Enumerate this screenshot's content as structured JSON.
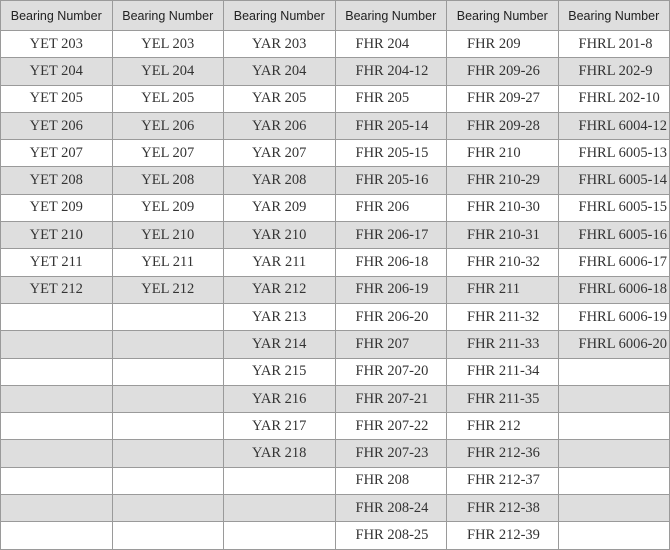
{
  "table": {
    "headers": [
      "Bearing Number",
      "Bearing Number",
      "Bearing Number",
      "Bearing Number",
      "Bearing Number",
      "Bearing Number"
    ],
    "columns": [
      [
        "YET 203",
        "YET 204",
        "YET 205",
        "YET 206",
        "YET 207",
        "YET 208",
        "YET 209",
        "YET 210",
        "YET 211",
        "YET 212"
      ],
      [
        "YEL 203",
        "YEL 204",
        "YEL 205",
        "YEL 206",
        "YEL 207",
        "YEL 208",
        "YEL 209",
        "YEL 210",
        "YEL 211",
        "YEL 212"
      ],
      [
        "YAR 203",
        "YAR 204",
        "YAR 205",
        "YAR 206",
        "YAR 207",
        "YAR 208",
        "YAR 209",
        "YAR 210",
        "YAR 211",
        "YAR 212",
        "YAR 213",
        "YAR 214",
        "YAR 215",
        "YAR 216",
        "YAR 217",
        "YAR 218"
      ],
      [
        "FHR 204",
        "FHR 204-12",
        "FHR 205",
        "FHR 205-14",
        "FHR 205-15",
        "FHR 205-16",
        "FHR 206",
        "FHR 206-17",
        "FHR 206-18",
        "FHR 206-19",
        "FHR 206-20",
        "FHR 207",
        "FHR 207-20",
        "FHR 207-21",
        "FHR 207-22",
        "FHR 207-23",
        "FHR 208",
        "FHR 208-24",
        "FHR 208-25"
      ],
      [
        "FHR 209",
        "FHR 209-26",
        "FHR 209-27",
        "FHR 209-28",
        "FHR 210",
        "FHR 210-29",
        "FHR 210-30",
        "FHR 210-31",
        "FHR 210-32",
        "FHR 211",
        "FHR 211-32",
        "FHR 211-33",
        "FHR 211-34",
        "FHR 211-35",
        "FHR 212",
        "FHR 212-36",
        "FHR 212-37",
        "FHR 212-38",
        "FHR 212-39"
      ],
      [
        "FHRL 201-8",
        "FHRL 202-9",
        "FHRL 202-10",
        "FHRL 6004-12",
        "FHRL 6005-13",
        "FHRL 6005-14",
        "FHRL 6005-15",
        "FHRL 6005-16",
        "FHRL 6006-17",
        "FHRL 6006-18",
        "FHRL 6006-19",
        "FHRL 6006-20"
      ]
    ],
    "row_count": 19
  },
  "colors": {
    "header_bg": "#dedede",
    "alt_row_bg": "#dedede",
    "border": "#9a9a9a"
  }
}
